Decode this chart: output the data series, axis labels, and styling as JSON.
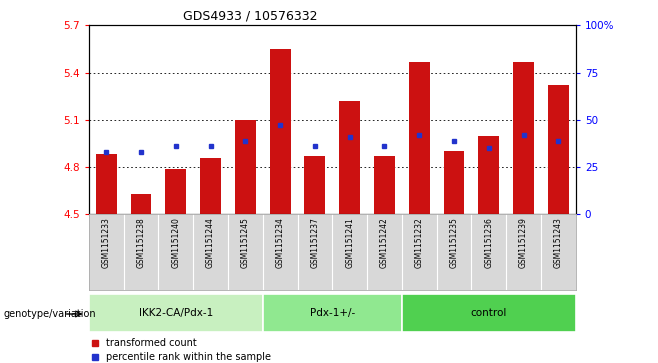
{
  "title": "GDS4933 / 10576332",
  "samples": [
    "GSM1151233",
    "GSM1151238",
    "GSM1151240",
    "GSM1151244",
    "GSM1151245",
    "GSM1151234",
    "GSM1151237",
    "GSM1151241",
    "GSM1151242",
    "GSM1151232",
    "GSM1151235",
    "GSM1151236",
    "GSM1151239",
    "GSM1151243"
  ],
  "red_values": [
    4.88,
    4.63,
    4.79,
    4.86,
    5.1,
    5.55,
    4.87,
    5.22,
    4.87,
    5.47,
    4.9,
    5.0,
    5.47,
    5.32
  ],
  "blue_percentiles": [
    33,
    33,
    36,
    36,
    39,
    47,
    36,
    41,
    36,
    42,
    39,
    35,
    42,
    39
  ],
  "ymin": 4.5,
  "ymax": 5.7,
  "y_ticks": [
    4.5,
    4.8,
    5.1,
    5.4,
    5.7
  ],
  "y_tick_labels": [
    "4.5",
    "4.8",
    "5.1",
    "5.4",
    "5.7"
  ],
  "right_y_ticks": [
    0,
    25,
    50,
    75,
    100
  ],
  "right_y_tick_labels": [
    "0",
    "25",
    "50",
    "75",
    "100%"
  ],
  "groups": [
    {
      "label": "IKK2-CA/Pdx-1",
      "start": 0,
      "end": 5
    },
    {
      "label": "Pdx-1+/-",
      "start": 5,
      "end": 9
    },
    {
      "label": "control",
      "start": 9,
      "end": 14
    }
  ],
  "group_colors": [
    "#c8f0c0",
    "#90e890",
    "#50d050"
  ],
  "bar_color": "#cc1111",
  "dot_color": "#2233cc",
  "bar_width": 0.6,
  "legend_red": "transformed count",
  "legend_blue": "percentile rank within the sample",
  "xlabel_genotype": "genotype/variation"
}
